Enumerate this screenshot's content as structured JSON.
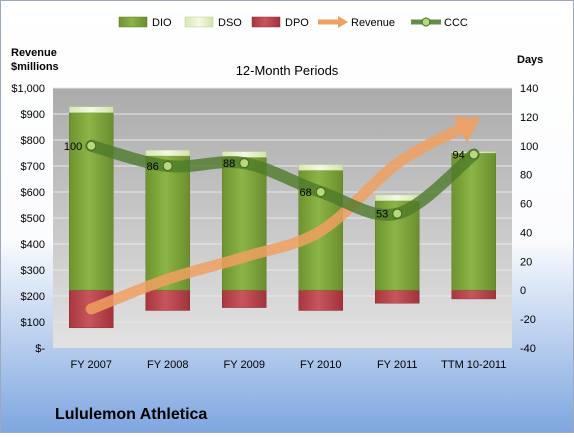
{
  "chart_data": {
    "type": "bar",
    "title": "12-Month Periods",
    "company": "Lululemon Athletica",
    "left_axis_label_line1": "Revenue",
    "left_axis_label_line2": "$millions",
    "right_axis_label": "Days",
    "categories": [
      "FY 2007",
      "FY 2008",
      "FY 2009",
      "FY 2010",
      "FY 2011",
      "TTM 10-2011"
    ],
    "left_ticks": [
      "$-",
      "$100",
      "$200",
      "$300",
      "$400",
      "$500",
      "$600",
      "$700",
      "$800",
      "$900",
      "$1,000"
    ],
    "left_range": [
      0,
      1000
    ],
    "right_ticks": [
      "-40",
      "-20",
      "0",
      "20",
      "40",
      "60",
      "80",
      "100",
      "120",
      "140"
    ],
    "right_range": [
      -40,
      140
    ],
    "legend_placement": "top",
    "series": [
      {
        "name": "DIO",
        "axis": "right",
        "kind": "stacked-bar",
        "color": "#7FA33A",
        "values": [
          123,
          93,
          92,
          83,
          62,
          95
        ]
      },
      {
        "name": "DSO",
        "axis": "right",
        "kind": "stacked-bar",
        "color": "#E6F2C8",
        "values": [
          4,
          4,
          4,
          4,
          4,
          1
        ]
      },
      {
        "name": "DPO",
        "axis": "right",
        "kind": "stacked-bar",
        "color": "#B8434A",
        "values": [
          -26,
          -14,
          -12,
          -14,
          -9,
          -6
        ]
      },
      {
        "name": "Revenue",
        "axis": "left",
        "kind": "arrow-line",
        "color": "#F0A060",
        "values": [
          150,
          265,
          350,
          450,
          710,
          870
        ]
      },
      {
        "name": "CCC",
        "axis": "right",
        "kind": "line",
        "color": "#4E7A2A",
        "values": [
          100,
          86,
          88,
          68,
          53,
          94
        ]
      }
    ],
    "data_labels": [
      "100",
      "86",
      "88",
      "68",
      "53",
      "94"
    ],
    "colors": {
      "plot_bg": "#A8A8A8",
      "gridline": "#E8E8E8",
      "background_top": "#FFFFFF",
      "background_bottom": "#7EA6E0"
    }
  }
}
